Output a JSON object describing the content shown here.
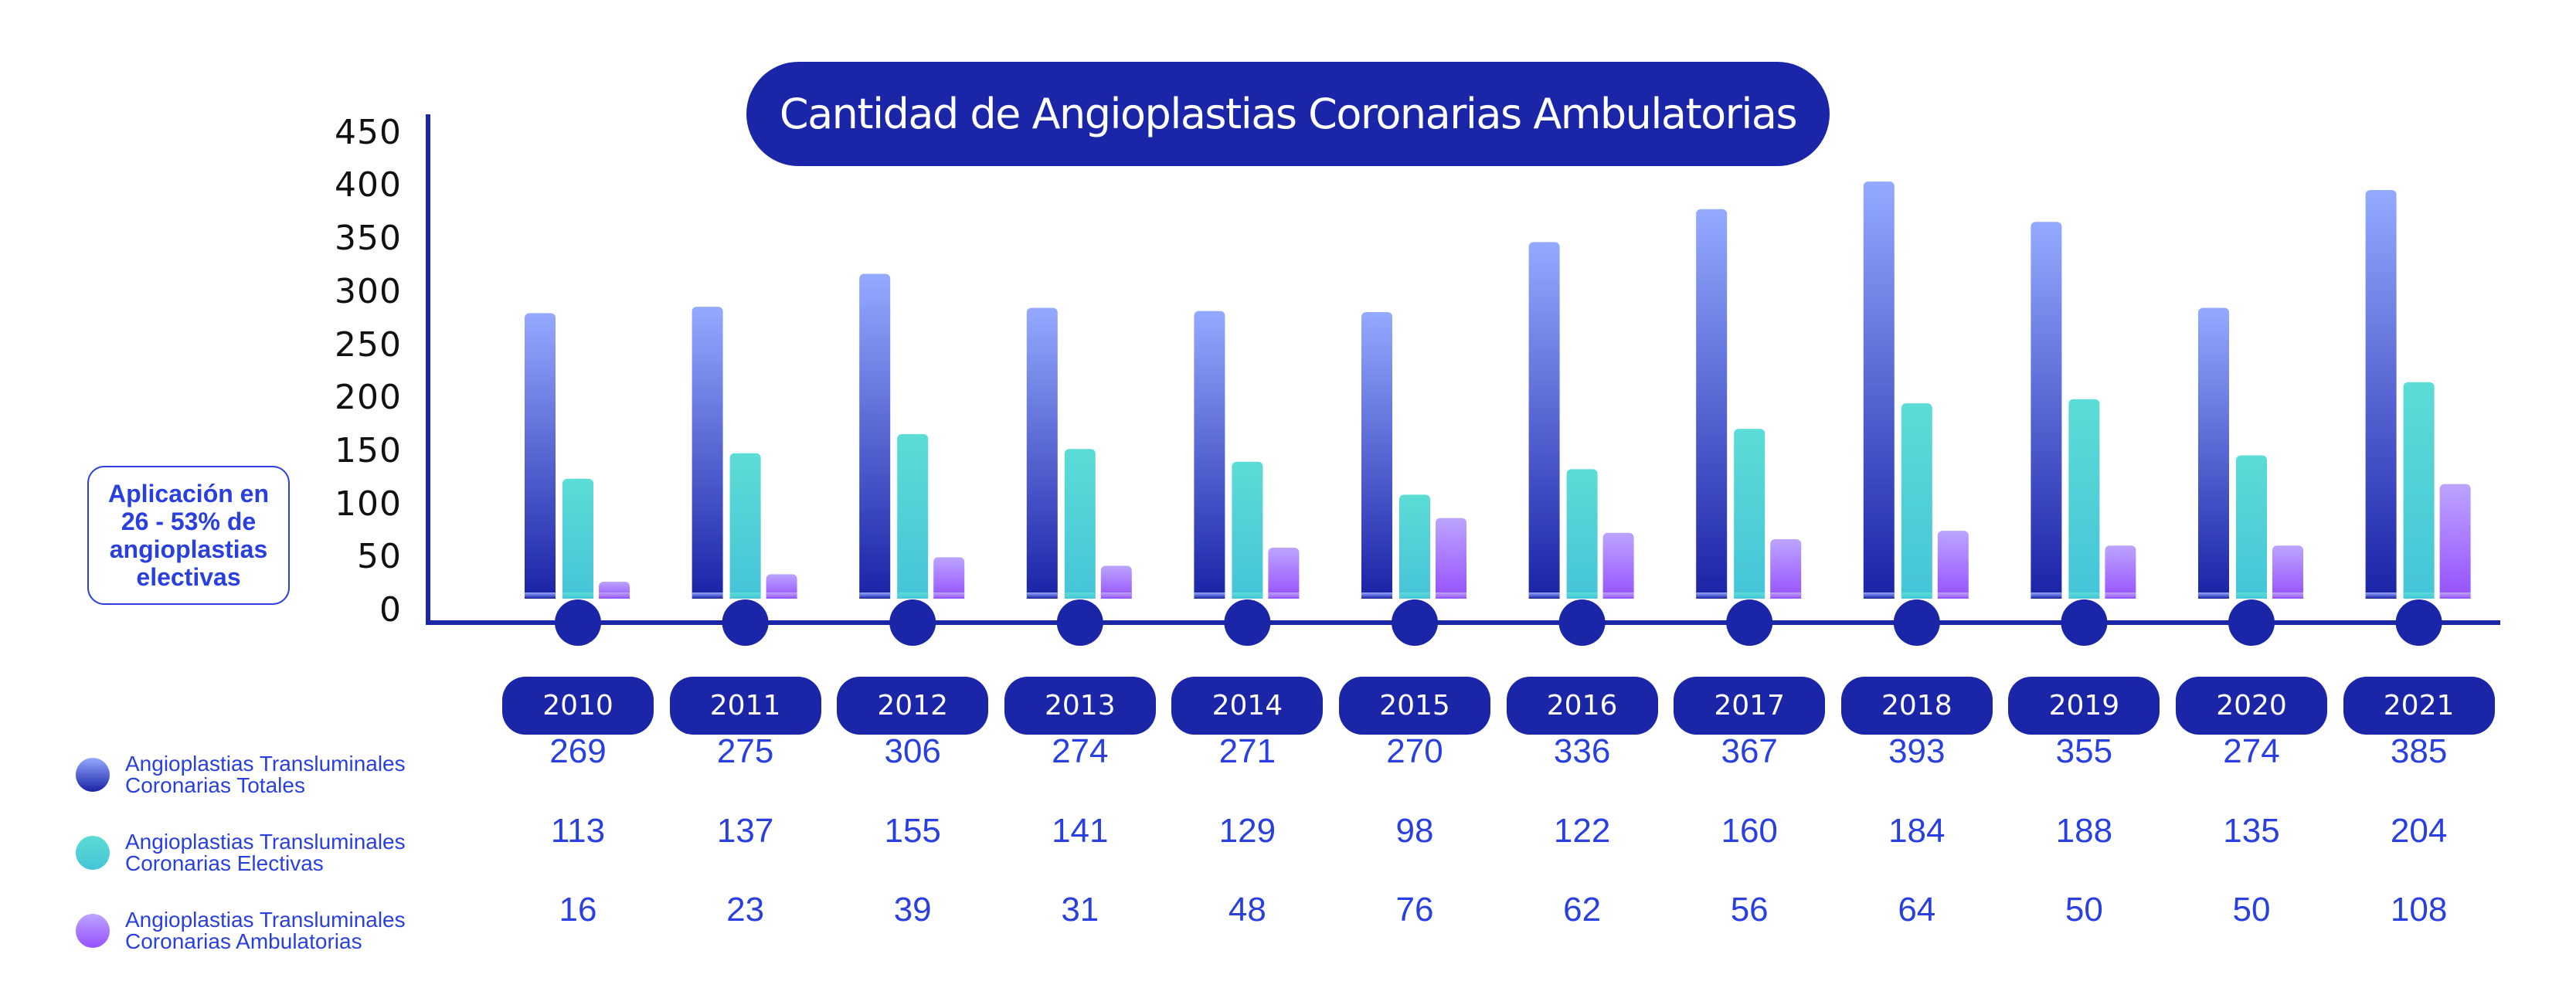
{
  "colors": {
    "navy": "#1b25a8",
    "text_blue": "#2a3fe0",
    "series_totales_top": "#94aaff",
    "series_totales_bottom": "#1a22a6",
    "series_electivas_top": "#5cdcd6",
    "series_electivas_bottom": "#45c4d8",
    "series_ambulatorias_top": "#bca4ff",
    "series_ambulatorias_bottom": "#9650ff"
  },
  "note": {
    "text": "Aplicación en 26 - 53% de angioplastias electivas"
  },
  "chart_data": {
    "type": "bar",
    "title": "Cantidad de Angioplastias Coronarias Ambulatorias",
    "xlabel": "",
    "ylabel": "",
    "ylim": [
      0,
      450
    ],
    "yticks": [
      "0",
      "50",
      "100",
      "150",
      "200",
      "250",
      "300",
      "350",
      "400",
      "450"
    ],
    "grid": false,
    "legend_position": "bottom-left",
    "categories": [
      "2010",
      "2011",
      "2012",
      "2013",
      "2014",
      "2015",
      "2016",
      "2017",
      "2018",
      "2019",
      "2020",
      "2021"
    ],
    "series": [
      {
        "name": "Angioplastias Transluminales Coronarias Totales",
        "label_line1": "Angioplastias Transluminales",
        "label_line2": "Coronarias Totales",
        "values": [
          269,
          275,
          306,
          274,
          271,
          270,
          336,
          367,
          393,
          355,
          274,
          385
        ]
      },
      {
        "name": "Angioplastias Transluminales Coronarias Electivas",
        "label_line1": "Angioplastias Transluminales",
        "label_line2": "Coronarias Electivas",
        "values": [
          113,
          137,
          155,
          141,
          129,
          98,
          122,
          160,
          184,
          188,
          135,
          204
        ]
      },
      {
        "name": "Angioplastias Transluminales Coronarias Ambulatorias",
        "label_line1": "Angioplastias Transluminales",
        "label_line2": "Coronarias Ambulatorias",
        "values": [
          16,
          23,
          39,
          31,
          48,
          76,
          62,
          56,
          64,
          50,
          50,
          108
        ]
      }
    ]
  }
}
